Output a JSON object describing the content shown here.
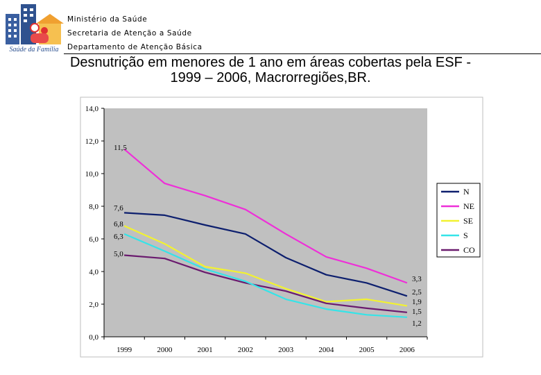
{
  "header": {
    "logo_caption": "Saúde da Família",
    "line1": "Ministério da Saúde",
    "line2": "Secretaria de Atenção a Saúde",
    "line3": "Departamento de Atenção Básica"
  },
  "title_line1": "Desnutrição em menores de 1 ano em áreas cobertas pela ESF -",
  "title_line2": "1999 – 2006, Macrorregiões,BR.",
  "chart_data": {
    "type": "line",
    "title": "Desnutrição em menores de 1 ano em áreas cobertas pela ESF - 1999 – 2006, Macrorregiões,BR.",
    "categories": [
      "1999",
      "2000",
      "2001",
      "2002",
      "2003",
      "2004",
      "2005",
      "2006"
    ],
    "ylim": [
      0,
      14
    ],
    "y_ticks": [
      "0,0",
      "2,0",
      "4,0",
      "6,0",
      "8,0",
      "10,0",
      "12,0",
      "14,0"
    ],
    "y_tick_values": [
      0,
      2,
      4,
      6,
      8,
      10,
      12,
      14
    ],
    "xlabel": "",
    "ylabel": "",
    "grid": false,
    "legend_position": "right",
    "series": [
      {
        "name": "N",
        "color": "#0d1f6e",
        "values": [
          7.6,
          7.45,
          6.85,
          6.3,
          4.85,
          3.8,
          3.3,
          2.5
        ],
        "start_label": "7,6",
        "end_label": "2,5"
      },
      {
        "name": "NE",
        "color": "#ee2fd8",
        "values": [
          11.5,
          9.4,
          8.65,
          7.8,
          6.3,
          4.9,
          4.2,
          3.3
        ],
        "start_label": "11,5",
        "end_label": "3,3"
      },
      {
        "name": "SE",
        "color": "#f2f230",
        "values": [
          6.8,
          5.7,
          4.3,
          3.9,
          2.95,
          2.15,
          2.3,
          1.9
        ],
        "start_label": "6,8",
        "end_label": "1,9"
      },
      {
        "name": "S",
        "color": "#35e4e8",
        "values": [
          6.3,
          5.25,
          4.15,
          3.4,
          2.3,
          1.7,
          1.35,
          1.2
        ],
        "start_label": "6,3",
        "end_label": "1,2"
      },
      {
        "name": "CO",
        "color": "#6a1a6e",
        "values": [
          5.0,
          4.8,
          3.95,
          3.3,
          2.8,
          2.05,
          1.75,
          1.5
        ],
        "start_label": "5,0",
        "end_label": "1,5"
      }
    ]
  }
}
